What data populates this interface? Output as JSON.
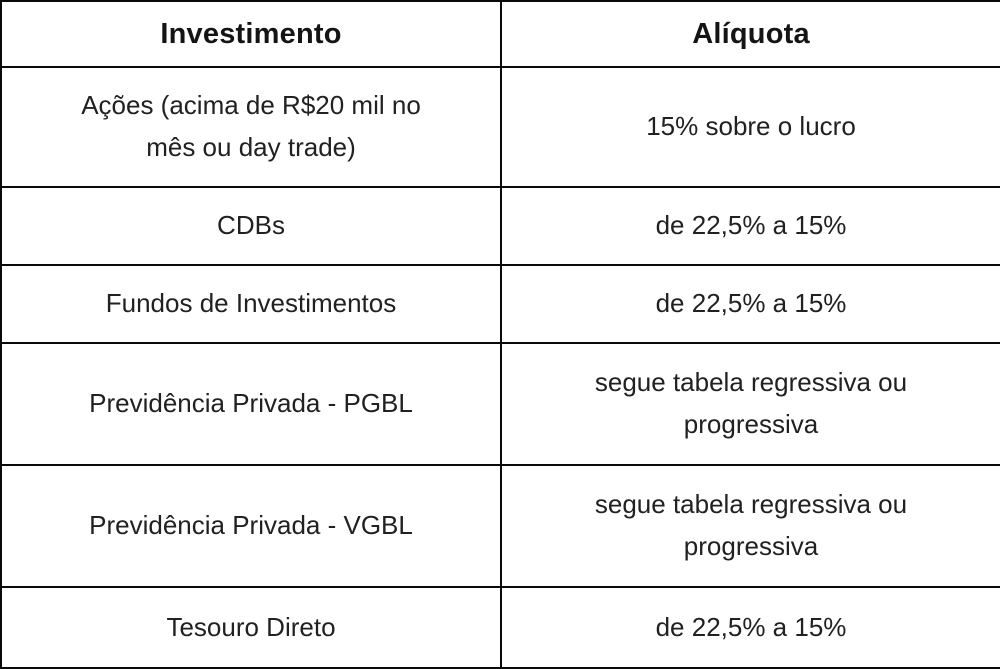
{
  "chart_data": {
    "type": "table",
    "columns": [
      "Investimento",
      "Alíquota"
    ],
    "rows": [
      [
        "Ações (acima de R$20 mil no mês ou day trade)",
        "15% sobre o lucro"
      ],
      [
        "CDBs",
        "de 22,5% a 15%"
      ],
      [
        "Fundos de Investimentos",
        "de 22,5% a 15%"
      ],
      [
        "Previdência Privada - PGBL",
        "segue tabela regressiva ou progressiva"
      ],
      [
        "Previdência Privada - VGBL",
        "segue tabela regressiva ou progressiva"
      ],
      [
        "Tesouro Direto",
        "de 22,5% a 15%"
      ]
    ],
    "layout": {
      "grid": "on",
      "column_split": "50/50",
      "header_bold": true
    }
  },
  "colors": {
    "border": "#0a0a0a",
    "header_text": "#141414",
    "body_text": "#212121",
    "background": "#ffffff"
  }
}
